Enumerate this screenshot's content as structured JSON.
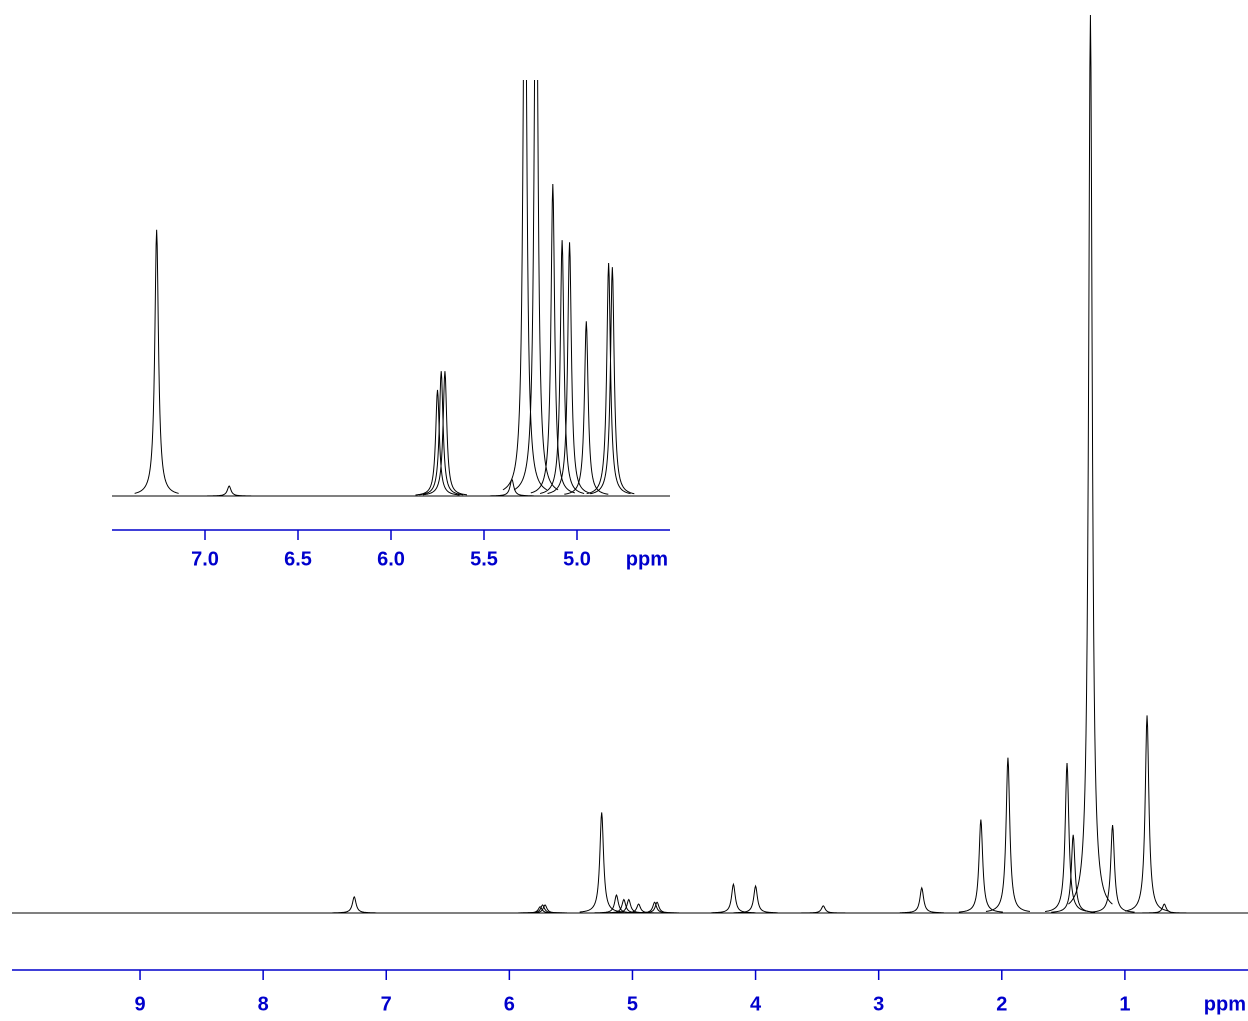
{
  "chart_data": [
    {
      "type": "nmr",
      "x_label": "ppm",
      "xlim": [
        10.04,
        0
      ],
      "xticks": [
        9,
        8,
        7,
        6,
        5,
        4,
        3,
        2,
        1
      ],
      "ylim": [
        0,
        100
      ],
      "color": "#000000",
      "axis_color": "#0000cc",
      "x": [
        7.26,
        5.75,
        5.73,
        5.71,
        5.25,
        5.13,
        5.07,
        5.03,
        4.95,
        4.82,
        4.8,
        4.18,
        4.0,
        3.45,
        2.65,
        2.17,
        1.95,
        1.47,
        1.42,
        1.28,
        1.1,
        0.82,
        0.68
      ],
      "values": [
        1.8,
        0.7,
        0.9,
        0.9,
        11.2,
        2.0,
        1.5,
        1.5,
        1.0,
        1.2,
        1.2,
        3.2,
        3.0,
        0.8,
        2.8,
        10.4,
        17.3,
        16.7,
        8.7,
        100,
        9.8,
        22,
        1.0
      ]
    },
    {
      "type": "nmr",
      "x_label": "ppm",
      "xlim": [
        7.5,
        4.5
      ],
      "xticks": [
        {
          "value": 7,
          "label": "7.0"
        },
        {
          "value": 6.5,
          "label": "6.5"
        },
        {
          "value": 6,
          "label": "6.0"
        },
        {
          "value": 5.5,
          "label": "5.5"
        },
        {
          "value": 5,
          "label": "5.0"
        }
      ],
      "ylim": [
        0,
        100
      ],
      "color": "#000000",
      "axis_color": "#0000cc",
      "x": [
        7.26,
        6.87,
        5.75,
        5.73,
        5.71,
        5.35,
        5.28,
        5.22,
        5.13,
        5.08,
        5.04,
        4.95,
        4.83,
        4.81
      ],
      "values": [
        64,
        2.4,
        25.5,
        30,
        30,
        4,
        150,
        150,
        75,
        61.5,
        61,
        42,
        56,
        55
      ]
    }
  ]
}
